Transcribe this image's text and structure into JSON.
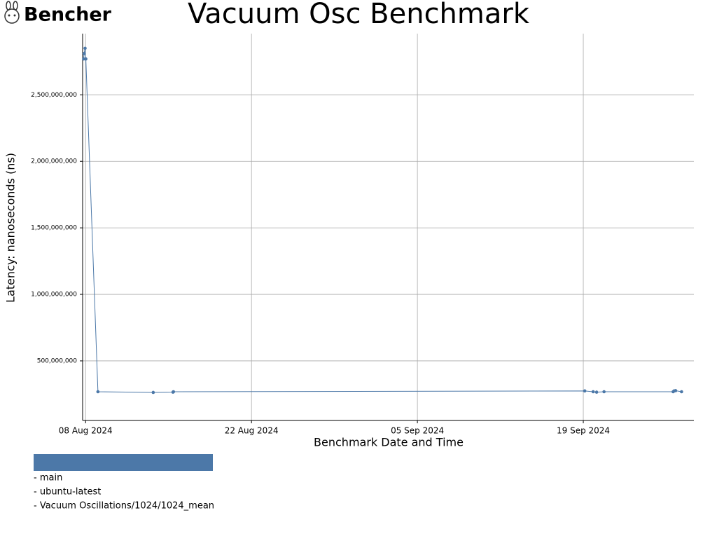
{
  "brand": "Bencher",
  "chart_data": {
    "type": "line",
    "title": "Vacuum Osc Benchmark",
    "x_label": "Benchmark Date and Time",
    "y_label": "Latency: nanoseconds (ns)",
    "x": [
      "2024-08-07T20:00",
      "2024-08-07T21:00",
      "2024-08-07T23:00",
      "2024-08-08T00:00",
      "2024-08-08T00:30",
      "2024-08-09T01:00",
      "2024-08-13T17:00",
      "2024-08-15T09:00",
      "2024-08-15T10:00",
      "2024-09-19T03:00",
      "2024-09-19T20:00",
      "2024-09-20T03:00",
      "2024-09-20T18:00",
      "2024-09-26T14:00",
      "2024-09-26T16:00",
      "2024-09-26T19:00",
      "2024-09-27T07:00"
    ],
    "series": [
      {
        "name": "main",
        "color": "#4c78a8",
        "values": [
          2770000000,
          2810000000,
          2850000000,
          2770000000,
          2770000000,
          268000000,
          263000000,
          265000000,
          268000000,
          274000000,
          268000000,
          265000000,
          268000000,
          268000000,
          274000000,
          276000000,
          268000000
        ]
      }
    ],
    "xlim": [
      "2024-08-07T18:00",
      "2024-09-28T08:00"
    ],
    "ylim": [
      52000000,
      2960000000
    ],
    "xticks": [
      {
        "value": "2024-08-08T00:00",
        "label": "08 Aug 2024"
      },
      {
        "value": "2024-08-22T00:00",
        "label": "22 Aug 2024"
      },
      {
        "value": "2024-09-05T00:00",
        "label": "05 Sep 2024"
      },
      {
        "value": "2024-09-19T00:00",
        "label": "19 Sep 2024"
      }
    ],
    "yticks": [
      {
        "value": 500000000,
        "label": "500,000,000"
      },
      {
        "value": 1000000000,
        "label": "1,000,000,000"
      },
      {
        "value": 1500000000,
        "label": "1,500,000,000"
      },
      {
        "value": 2000000000,
        "label": "2,000,000,000"
      },
      {
        "value": 2500000000,
        "label": "2,500,000,000"
      }
    ],
    "grid": true,
    "legend": [
      "- main",
      "- ubuntu-latest",
      "- Vacuum Oscillations/1024/1024_mean"
    ]
  }
}
